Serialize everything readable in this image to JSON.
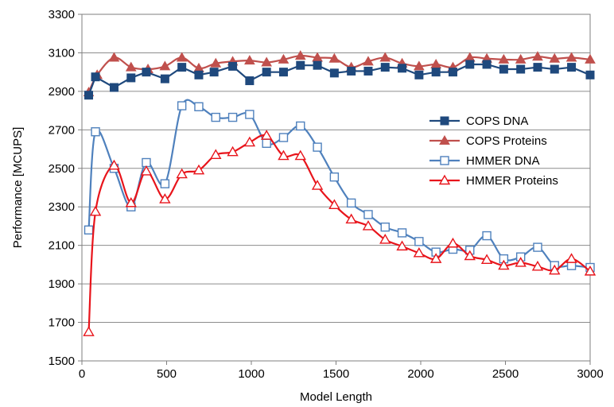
{
  "chart_data": {
    "type": "line",
    "xlabel": "Model Length",
    "ylabel": "Performance [MCUPS]",
    "xlim": [
      0,
      3000
    ],
    "ylim": [
      1500,
      3300
    ],
    "x_ticks": [
      "0",
      "500",
      "1000",
      "1500",
      "2000",
      "2500",
      "3000"
    ],
    "y_ticks": [
      "1500",
      "1700",
      "1900",
      "2100",
      "2300",
      "2500",
      "2700",
      "2900",
      "3100",
      "3300"
    ],
    "grid": "horizontal",
    "legend_position": "right",
    "series": [
      {
        "name": "COPS DNA",
        "color": "#1F497D",
        "marker": "filled-square",
        "smooth": false,
        "x": [
          40,
          80,
          190,
          290,
          380,
          490,
          590,
          690,
          780,
          890,
          990,
          1090,
          1190,
          1290,
          1390,
          1490,
          1590,
          1690,
          1790,
          1890,
          1990,
          2090,
          2190,
          2290,
          2390,
          2490,
          2590,
          2690,
          2790,
          2890,
          3000
        ],
        "y": [
          2880,
          2975,
          2920,
          2970,
          3000,
          2965,
          3025,
          2985,
          3000,
          3030,
          2955,
          3000,
          3000,
          3035,
          3035,
          2995,
          3005,
          3005,
          3025,
          3020,
          2985,
          3000,
          3000,
          3040,
          3040,
          3015,
          3015,
          3025,
          3015,
          3025,
          2985
        ]
      },
      {
        "name": "COPS Proteins",
        "color": "#C0504D",
        "marker": "filled-triangle",
        "smooth": true,
        "x": [
          40,
          90,
          190,
          290,
          390,
          490,
          590,
          690,
          790,
          890,
          990,
          1090,
          1190,
          1290,
          1390,
          1490,
          1590,
          1690,
          1790,
          1890,
          1990,
          2090,
          2190,
          2290,
          2390,
          2490,
          2590,
          2690,
          2790,
          2890,
          3000
        ],
        "y": [
          2895,
          2985,
          3075,
          3025,
          3015,
          3030,
          3075,
          3020,
          3045,
          3055,
          3060,
          3050,
          3065,
          3085,
          3075,
          3070,
          3025,
          3055,
          3075,
          3045,
          3030,
          3040,
          3025,
          3075,
          3070,
          3065,
          3065,
          3080,
          3070,
          3075,
          3065
        ]
      },
      {
        "name": "HMMER DNA",
        "color": "#4F81BD",
        "marker": "open-square",
        "smooth": true,
        "x": [
          40,
          80,
          190,
          290,
          380,
          490,
          590,
          690,
          790,
          890,
          990,
          1090,
          1190,
          1290,
          1390,
          1490,
          1590,
          1690,
          1790,
          1890,
          1990,
          2090,
          2190,
          2290,
          2390,
          2490,
          2590,
          2690,
          2790,
          2890,
          3000
        ],
        "y": [
          2180,
          2690,
          2500,
          2300,
          2530,
          2420,
          2825,
          2820,
          2765,
          2765,
          2780,
          2630,
          2660,
          2720,
          2610,
          2455,
          2320,
          2260,
          2195,
          2165,
          2120,
          2065,
          2080,
          2075,
          2150,
          2030,
          2040,
          2090,
          1995,
          1995,
          1985
        ]
      },
      {
        "name": "HMMER Proteins",
        "color": "#E8141B",
        "marker": "open-triangle",
        "smooth": true,
        "x": [
          40,
          80,
          190,
          290,
          380,
          490,
          590,
          690,
          790,
          890,
          990,
          1090,
          1190,
          1290,
          1390,
          1490,
          1590,
          1690,
          1790,
          1890,
          1990,
          2090,
          2190,
          2290,
          2390,
          2490,
          2590,
          2690,
          2790,
          2890,
          3000
        ],
        "y": [
          1650,
          2275,
          2515,
          2320,
          2485,
          2340,
          2470,
          2490,
          2570,
          2585,
          2635,
          2670,
          2565,
          2565,
          2410,
          2310,
          2235,
          2200,
          2130,
          2095,
          2060,
          2030,
          2110,
          2045,
          2025,
          1995,
          2010,
          1990,
          1970,
          2030,
          1965
        ]
      }
    ]
  }
}
